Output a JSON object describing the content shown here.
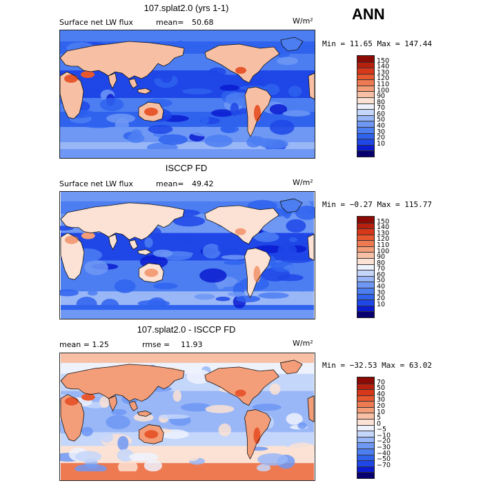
{
  "season": "ANN",
  "colors": {
    "model_obs_scale": [
      "#08006f",
      "#0a1bd0",
      "#1f46e6",
      "#2f63ee",
      "#4c7ef2",
      "#6e98f4",
      "#99b7f7",
      "#c4d6fa",
      "#eef2fd",
      "#fbe2d4",
      "#f7c0a4",
      "#f39d79",
      "#ee7a52",
      "#e8582f",
      "#d7381a",
      "#b8200e",
      "#8c0a04"
    ],
    "diff_scale": [
      "#08006f",
      "#0a1bd0",
      "#1f46e6",
      "#2f63ee",
      "#4c7ef2",
      "#6e98f4",
      "#99b7f7",
      "#c4d6fa",
      "#eef2fd",
      "#fbe2d4",
      "#f7c0a4",
      "#f39d79",
      "#ee7a52",
      "#e8582f",
      "#d7381a",
      "#b8200e",
      "#8c0a04"
    ]
  },
  "panels": [
    {
      "title": "107.splat2.0 (yrs 1-1)",
      "left_label": "Surface net LW flux",
      "stat_label": "mean=",
      "stat_value": "50.68",
      "units": "W/m²",
      "minmax": "Min =  11.65 Max = 147.44",
      "cbar_labels": [
        "150",
        "140",
        "130",
        "120",
        "110",
        "100",
        "90",
        "80",
        "70",
        "60",
        "50",
        "40",
        "30",
        "20",
        "10"
      ],
      "pattern": "model"
    },
    {
      "title": "ISCCP FD",
      "left_label": "Surface net LW flux",
      "stat_label": "mean=",
      "stat_value": "49.42",
      "units": "W/m²",
      "minmax": "Min =  −0.27 Max = 115.77",
      "cbar_labels": [
        "150",
        "140",
        "130",
        "120",
        "110",
        "100",
        "90",
        "80",
        "70",
        "60",
        "50",
        "40",
        "30",
        "20",
        "10"
      ],
      "pattern": "obs"
    },
    {
      "title": "107.splat2.0 - ISCCP FD",
      "left_label": "mean =    1.25",
      "stat_label": "rmse =",
      "stat_value": "11.93",
      "units": "W/m²",
      "minmax": "Min = −32.53 Max =  63.02",
      "cbar_labels": [
        "70",
        "50",
        "40",
        "30",
        "20",
        "10",
        "5",
        "0",
        "−5",
        "−10",
        "−20",
        "−30",
        "−40",
        "−50",
        "−70"
      ],
      "pattern": "diff"
    }
  ]
}
